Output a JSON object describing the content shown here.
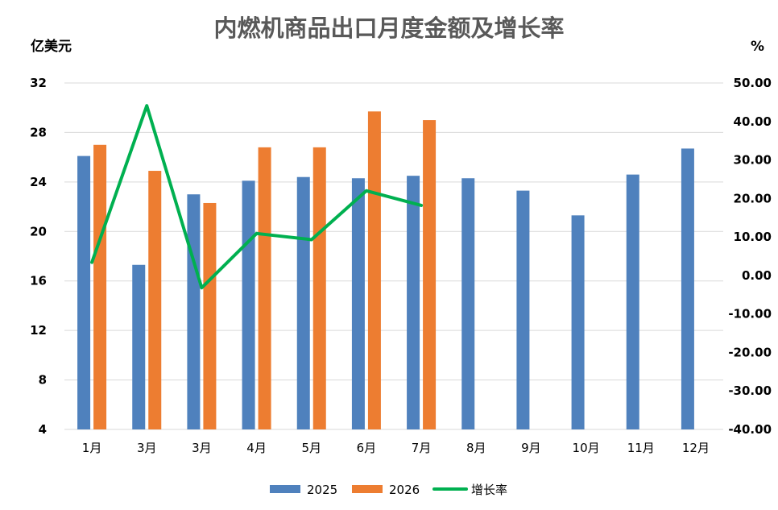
{
  "chart_data": {
    "type": "bar",
    "title": "内燃机商品出口月度金额及增长率",
    "left_unit": "亿美元",
    "right_unit": "%",
    "categories": [
      "1月",
      "3月",
      "3月",
      "4月",
      "5月",
      "6月",
      "7月",
      "8月",
      "9月",
      "10月",
      "11月",
      "12月"
    ],
    "y_left": {
      "min": 4,
      "max": 32,
      "ticks": [
        "4",
        "8",
        "12",
        "16",
        "20",
        "24",
        "28",
        "32"
      ]
    },
    "y_right": {
      "min": -40,
      "max": 50,
      "ticks": [
        "-40.00",
        "-30.00",
        "-20.00",
        "-10.00",
        "0.00",
        "10.00",
        "20.00",
        "30.00",
        "40.00",
        "50.00"
      ]
    },
    "series": [
      {
        "name": "2025",
        "type": "bar",
        "axis": "left",
        "color": "#4f81bd",
        "values": [
          26.1,
          17.3,
          23.0,
          24.1,
          24.4,
          24.3,
          24.5,
          24.3,
          23.3,
          21.3,
          24.6,
          26.7
        ]
      },
      {
        "name": "2026",
        "type": "bar",
        "axis": "left",
        "color": "#ed7d31",
        "values": [
          27.0,
          24.9,
          22.3,
          26.8,
          26.8,
          29.7,
          29.0,
          null,
          null,
          null,
          null,
          null
        ]
      },
      {
        "name": "增长率",
        "type": "line",
        "axis": "right",
        "color": "#00b050",
        "values": [
          3.4,
          44.1,
          -3.2,
          10.9,
          9.3,
          22.0,
          18.2,
          null,
          null,
          null,
          null,
          null
        ]
      }
    ],
    "grid": true,
    "legend": "bottom"
  }
}
